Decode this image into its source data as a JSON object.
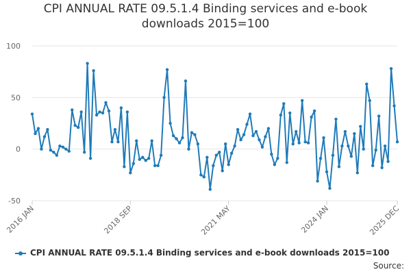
{
  "chart_data": {
    "type": "line",
    "title_line1": "CPI ANNUAL RATE 09.5.1.4 Binding services and e-book",
    "title_line2": "downloads 2015=100",
    "xlabel": "",
    "ylabel": "",
    "ylim": [
      -50,
      100
    ],
    "y_ticks": [
      "100",
      "50",
      "0",
      "-50"
    ],
    "y_tick_values": [
      100,
      50,
      0,
      -50
    ],
    "x_ticks": [
      {
        "label": "2016 JAN",
        "index": 0
      },
      {
        "label": "2018 SEP",
        "index": 32
      },
      {
        "label": "2021 MAY",
        "index": 64
      },
      {
        "label": "2024 JAN",
        "index": 96
      },
      {
        "label": "2025 DEC",
        "index": 119
      }
    ],
    "grid": true,
    "legend_position": "bottom",
    "series": [
      {
        "name": "CPI ANNUAL RATE 09.5.1.4 Binding services and e-book downloads 2015=100",
        "color": "#1f7ab8",
        "start": "2016 JAN",
        "frequency": "monthly",
        "values": [
          34,
          15,
          20,
          0,
          12,
          19,
          -1,
          -3,
          -6,
          3,
          2,
          0,
          -2,
          38,
          23,
          21,
          36,
          -3,
          83,
          -9,
          76,
          33,
          36,
          35,
          45,
          37,
          7,
          19,
          7,
          40,
          -17,
          36,
          -23,
          -14,
          8,
          -10,
          -8,
          -11,
          -9,
          8,
          -16,
          -16,
          -6,
          50,
          77,
          25,
          13,
          10,
          6,
          11,
          66,
          0,
          16,
          14,
          5,
          -25,
          -27,
          -8,
          -39,
          -16,
          -6,
          -3,
          -21,
          5,
          -15,
          -4,
          3,
          19,
          9,
          14,
          24,
          34,
          13,
          17,
          9,
          2,
          12,
          20,
          -5,
          -15,
          -9,
          33,
          44,
          -13,
          35,
          5,
          17,
          6,
          47,
          7,
          6,
          31,
          37,
          -31,
          -9,
          11,
          -22,
          -38,
          -6,
          29,
          -17,
          3,
          17,
          3,
          -7,
          15,
          -23,
          22,
          0,
          63,
          47,
          -16,
          -1,
          32,
          -18,
          3,
          -12,
          78,
          42,
          7
        ]
      }
    ]
  },
  "legend": {
    "label": "CPI ANNUAL RATE 09.5.1.4 Binding services and e-book downloads 2015=100"
  },
  "source": {
    "label": "Source:"
  }
}
